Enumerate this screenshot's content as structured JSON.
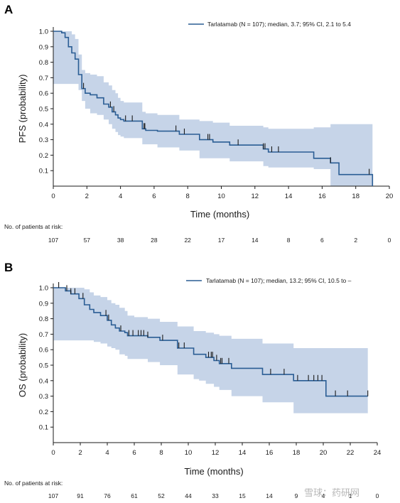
{
  "watermark_text": "雪球：药研网",
  "colors": {
    "line": "#2a5d94",
    "band": "#c6d4e8",
    "axis": "#1a1a1a",
    "censor": "#1a1a1a"
  },
  "chart_data": [
    {
      "panel": "A",
      "type": "line",
      "ylabel": "PFS (probability)",
      "xlabel": "Time (months)",
      "xlim": [
        0,
        20
      ],
      "xticks": [
        0,
        2,
        4,
        6,
        8,
        10,
        12,
        14,
        16,
        18,
        20
      ],
      "ylim": [
        0,
        1
      ],
      "yticks": [
        0.1,
        0.2,
        0.3,
        0.4,
        0.5,
        0.6,
        0.7,
        0.8,
        0.9,
        1.0
      ],
      "ytick_labels": [
        "0.1",
        "0.2",
        "0.3",
        "0.4",
        "0.5",
        "0.6",
        "0.7",
        "0.8",
        "0.9",
        "1.0"
      ],
      "legend": "Tarlatamab (N = 107); median, 3.7; 95% CI, 2.1 to 5.4",
      "series": [
        {
          "name": "Tarlatamab",
          "x": [
            0,
            0.5,
            0.7,
            0.9,
            1.1,
            1.3,
            1.5,
            1.7,
            1.9,
            2.2,
            2.6,
            3.0,
            3.3,
            3.5,
            3.7,
            3.85,
            4.0,
            4.2,
            5.3,
            5.5,
            6.2,
            7.5,
            8.7,
            9.5,
            10.5,
            12.5,
            12.8,
            14.0,
            15.5,
            16.5,
            17.0,
            19.0
          ],
          "y": [
            1.0,
            0.99,
            0.96,
            0.9,
            0.86,
            0.82,
            0.72,
            0.63,
            0.6,
            0.59,
            0.57,
            0.53,
            0.51,
            0.48,
            0.46,
            0.44,
            0.43,
            0.42,
            0.37,
            0.36,
            0.355,
            0.335,
            0.3,
            0.285,
            0.265,
            0.24,
            0.22,
            0.22,
            0.18,
            0.15,
            0.075,
            0.0
          ]
        }
      ],
      "ci_lower": [
        0.66,
        0.66,
        0.66,
        0.66,
        0.66,
        0.66,
        0.62,
        0.55,
        0.5,
        0.47,
        0.46,
        0.43,
        0.4,
        0.37,
        0.35,
        0.33,
        0.32,
        0.31,
        0.27,
        0.27,
        0.25,
        0.23,
        0.18,
        0.18,
        0.16,
        0.13,
        0.12,
        0.12,
        0.11,
        0.0,
        0.0,
        0.0
      ],
      "ci_upper": [
        1.0,
        1.0,
        1.0,
        1.0,
        0.98,
        0.95,
        0.85,
        0.75,
        0.73,
        0.72,
        0.71,
        0.67,
        0.65,
        0.62,
        0.6,
        0.57,
        0.55,
        0.54,
        0.48,
        0.47,
        0.46,
        0.43,
        0.42,
        0.41,
        0.39,
        0.38,
        0.37,
        0.37,
        0.38,
        0.4,
        0.4,
        0.4
      ],
      "censor_x": [
        1.8,
        3.4,
        3.6,
        4.3,
        4.7,
        5.4,
        5.45,
        7.3,
        7.8,
        9.2,
        9.3,
        11.0,
        12.5,
        12.6,
        13.0,
        13.4,
        16.5,
        18.8
      ],
      "risk_title": "No. of patients at risk:",
      "risk_x": [
        0,
        2,
        4,
        6,
        8,
        10,
        12,
        14,
        16,
        18,
        20
      ],
      "risk_counts": [
        "107",
        "57",
        "38",
        "28",
        "22",
        "17",
        "14",
        "8",
        "6",
        "2",
        "0"
      ]
    },
    {
      "panel": "B",
      "type": "line",
      "ylabel": "OS (probability)",
      "xlabel": "Time (months)",
      "xlim": [
        0,
        24
      ],
      "xticks": [
        0,
        2,
        4,
        6,
        8,
        10,
        12,
        14,
        16,
        18,
        20,
        22,
        24
      ],
      "ylim": [
        0,
        1
      ],
      "yticks": [
        0.1,
        0.2,
        0.3,
        0.4,
        0.5,
        0.6,
        0.7,
        0.8,
        0.9,
        1.0
      ],
      "ytick_labels": [
        "0.1",
        "0.2",
        "0.3",
        "0.4",
        "0.5",
        "0.6",
        "0.7",
        "0.8",
        "0.9",
        "1.0"
      ],
      "legend": "Tarlatamab (N = 107); median, 13.2; 95% CI, 10.5 to –",
      "series": [
        {
          "name": "Tarlatamab",
          "x": [
            0,
            0.9,
            1.3,
            1.9,
            2.3,
            2.7,
            3.0,
            3.5,
            4.0,
            4.3,
            4.6,
            4.9,
            5.3,
            5.5,
            6.0,
            7.0,
            7.9,
            9.2,
            10.4,
            10.8,
            11.3,
            11.9,
            12.3,
            13.2,
            15.5,
            17.8,
            20.2,
            23.3
          ],
          "y": [
            1.0,
            0.98,
            0.96,
            0.93,
            0.89,
            0.86,
            0.84,
            0.82,
            0.79,
            0.76,
            0.74,
            0.72,
            0.71,
            0.69,
            0.69,
            0.68,
            0.66,
            0.61,
            0.57,
            0.57,
            0.55,
            0.53,
            0.51,
            0.48,
            0.44,
            0.4,
            0.3,
            0.3
          ]
        }
      ],
      "ci_lower": [
        0.66,
        0.66,
        0.66,
        0.66,
        0.66,
        0.66,
        0.65,
        0.64,
        0.62,
        0.61,
        0.6,
        0.57,
        0.56,
        0.54,
        0.54,
        0.52,
        0.5,
        0.44,
        0.41,
        0.4,
        0.38,
        0.36,
        0.34,
        0.3,
        0.26,
        0.19,
        0.19,
        0.19
      ],
      "ci_upper": [
        1.0,
        1.0,
        1.0,
        1.0,
        0.99,
        0.97,
        0.95,
        0.94,
        0.92,
        0.9,
        0.89,
        0.87,
        0.85,
        0.82,
        0.81,
        0.8,
        0.78,
        0.75,
        0.72,
        0.72,
        0.71,
        0.7,
        0.69,
        0.67,
        0.64,
        0.61,
        0.61,
        0.61
      ],
      "censor_x": [
        0.4,
        1.0,
        1.3,
        1.6,
        2.2,
        3.9,
        4.1,
        5.0,
        5.6,
        5.9,
        6.3,
        6.5,
        6.7,
        7.0,
        8.1,
        9.3,
        9.7,
        11.5,
        11.7,
        11.8,
        12.1,
        12.4,
        12.5,
        13.0,
        16.1,
        17.1,
        18.1,
        18.9,
        19.3,
        19.6,
        19.9,
        20.9,
        21.8,
        23.3
      ],
      "risk_title": "No. of patients at risk:",
      "risk_x": [
        0,
        2,
        4,
        6,
        8,
        10,
        12,
        14,
        16,
        18,
        20,
        22,
        24
      ],
      "risk_counts": [
        "107",
        "91",
        "76",
        "61",
        "52",
        "44",
        "33",
        "15",
        "14",
        "9",
        "4",
        "1",
        "0"
      ]
    }
  ]
}
